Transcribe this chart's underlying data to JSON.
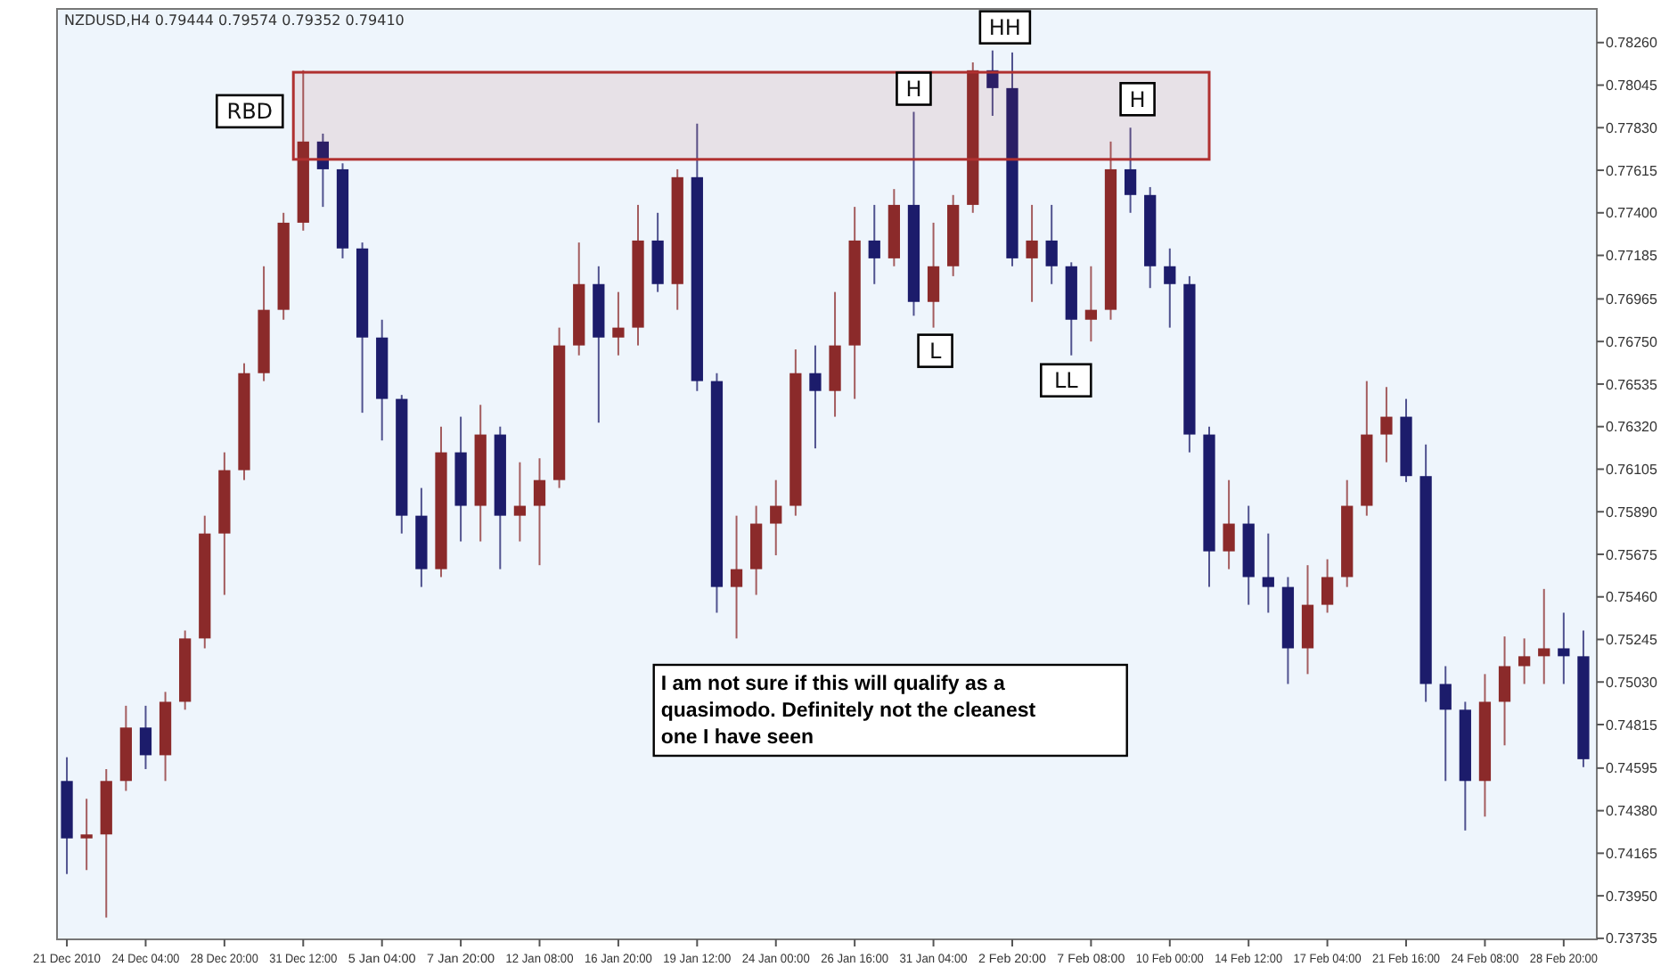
{
  "chart_data": {
    "type": "candlestick",
    "title": "NZDUSD,H4  0.79444 0.79574 0.79352 0.79410",
    "categories": [
      "21 Dec 2010",
      null,
      null,
      null,
      "24 Dec 04:00",
      null,
      null,
      null,
      "28 Dec 20:00",
      null,
      null,
      null,
      "31 Dec 12:00",
      null,
      null,
      null,
      "5 Jan 04:00",
      null,
      null,
      null,
      "7 Jan 20:00",
      null,
      null,
      null,
      "12 Jan 08:00",
      null,
      null,
      null,
      "16 Jan 20:00",
      null,
      null,
      null,
      "19 Jan 12:00",
      null,
      null,
      null,
      "24 Jan 00:00",
      null,
      null,
      null,
      "26 Jan 16:00",
      null,
      null,
      null,
      "31 Jan 04:00",
      null,
      null,
      null,
      "2 Feb 20:00",
      null,
      null,
      null,
      "7 Feb 08:00",
      null,
      null,
      null,
      "10 Feb 00:00",
      null,
      null,
      null,
      "14 Feb 12:00",
      null,
      null,
      null,
      "17 Feb 04:00",
      null,
      null,
      null,
      "21 Feb 16:00",
      null,
      null,
      null,
      "24 Feb 08:00",
      null,
      null,
      null,
      "28 Feb 20:00",
      null
    ],
    "ohlc": [
      [
        0.7453,
        0.7465,
        0.7406,
        0.7424
      ],
      [
        0.7424,
        0.7444,
        0.7408,
        0.7426
      ],
      [
        0.7426,
        0.7459,
        0.7384,
        0.7453
      ],
      [
        0.7453,
        0.7491,
        0.7448,
        0.748
      ],
      [
        0.748,
        0.7491,
        0.7459,
        0.7466
      ],
      [
        0.7466,
        0.7498,
        0.7453,
        0.7493
      ],
      [
        0.7493,
        0.7529,
        0.7489,
        0.7525
      ],
      [
        0.7525,
        0.7587,
        0.752,
        0.7578
      ],
      [
        0.7578,
        0.7619,
        0.7547,
        0.761
      ],
      [
        0.761,
        0.7664,
        0.7605,
        0.7659
      ],
      [
        0.7659,
        0.7713,
        0.7655,
        0.7691
      ],
      [
        0.7691,
        0.774,
        0.7686,
        0.7735
      ],
      [
        0.7735,
        0.7812,
        0.7731,
        0.7776
      ],
      [
        0.7776,
        0.778,
        0.7743,
        0.7762
      ],
      [
        0.7762,
        0.7765,
        0.7717,
        0.7722
      ],
      [
        0.7722,
        0.7725,
        0.7639,
        0.7677
      ],
      [
        0.7677,
        0.7686,
        0.7625,
        0.7646
      ],
      [
        0.7646,
        0.7648,
        0.7578,
        0.7587
      ],
      [
        0.7587,
        0.7601,
        0.7551,
        0.756
      ],
      [
        0.756,
        0.7632,
        0.7556,
        0.7619
      ],
      [
        0.7619,
        0.7637,
        0.7574,
        0.7592
      ],
      [
        0.7592,
        0.7643,
        0.7574,
        0.7628
      ],
      [
        0.7628,
        0.7632,
        0.756,
        0.7587
      ],
      [
        0.7587,
        0.7614,
        0.7574,
        0.7592
      ],
      [
        0.7592,
        0.7616,
        0.7562,
        0.7605
      ],
      [
        0.7605,
        0.7682,
        0.7601,
        0.7673
      ],
      [
        0.7673,
        0.7725,
        0.7668,
        0.7704
      ],
      [
        0.7704,
        0.7713,
        0.7634,
        0.7677
      ],
      [
        0.7677,
        0.77,
        0.7668,
        0.7682
      ],
      [
        0.7682,
        0.7744,
        0.7673,
        0.7726
      ],
      [
        0.7726,
        0.774,
        0.77,
        0.7704
      ],
      [
        0.7704,
        0.7762,
        0.7691,
        0.7758
      ],
      [
        0.7758,
        0.7785,
        0.765,
        0.7655
      ],
      [
        0.7655,
        0.7659,
        0.7538,
        0.7551
      ],
      [
        0.7551,
        0.7587,
        0.7525,
        0.756
      ],
      [
        0.756,
        0.7592,
        0.7547,
        0.7583
      ],
      [
        0.7583,
        0.7605,
        0.7567,
        0.7592
      ],
      [
        0.7592,
        0.7671,
        0.7587,
        0.7659
      ],
      [
        0.7659,
        0.7673,
        0.7621,
        0.765
      ],
      [
        0.765,
        0.77,
        0.7637,
        0.7673
      ],
      [
        0.7673,
        0.7743,
        0.7646,
        0.7726
      ],
      [
        0.7726,
        0.7744,
        0.7704,
        0.7717
      ],
      [
        0.7717,
        0.7752,
        0.7713,
        0.7744
      ],
      [
        0.7744,
        0.7791,
        0.7688,
        0.7695
      ],
      [
        0.7695,
        0.7735,
        0.7682,
        0.7713
      ],
      [
        0.7713,
        0.7749,
        0.7708,
        0.7744
      ],
      [
        0.7744,
        0.7816,
        0.774,
        0.7812
      ],
      [
        0.7812,
        0.7822,
        0.7789,
        0.7803
      ],
      [
        0.7803,
        0.7821,
        0.7713,
        0.7717
      ],
      [
        0.7717,
        0.7744,
        0.7695,
        0.7726
      ],
      [
        0.7726,
        0.7744,
        0.7704,
        0.7713
      ],
      [
        0.7713,
        0.7715,
        0.7668,
        0.7686
      ],
      [
        0.7686,
        0.7713,
        0.7675,
        0.7691
      ],
      [
        0.7691,
        0.7776,
        0.7686,
        0.7762
      ],
      [
        0.7762,
        0.7783,
        0.774,
        0.7749
      ],
      [
        0.7749,
        0.7753,
        0.7702,
        0.7713
      ],
      [
        0.7713,
        0.7722,
        0.7682,
        0.7704
      ],
      [
        0.7704,
        0.7708,
        0.7619,
        0.7628
      ],
      [
        0.7628,
        0.7632,
        0.7551,
        0.7569
      ],
      [
        0.7569,
        0.7605,
        0.756,
        0.7583
      ],
      [
        0.7583,
        0.7592,
        0.7542,
        0.7556
      ],
      [
        0.7556,
        0.7578,
        0.7538,
        0.7551
      ],
      [
        0.7551,
        0.7556,
        0.7502,
        0.752
      ],
      [
        0.752,
        0.7562,
        0.7507,
        0.7542
      ],
      [
        0.7542,
        0.7565,
        0.7538,
        0.7556
      ],
      [
        0.7556,
        0.7605,
        0.7551,
        0.7592
      ],
      [
        0.7592,
        0.7655,
        0.7587,
        0.7628
      ],
      [
        0.7628,
        0.7652,
        0.7614,
        0.7637
      ],
      [
        0.7637,
        0.7646,
        0.7604,
        0.7607
      ],
      [
        0.7607,
        0.7623,
        0.7493,
        0.7502
      ],
      [
        0.7502,
        0.7511,
        0.7453,
        0.7489
      ],
      [
        0.7489,
        0.7493,
        0.7428,
        0.7453
      ],
      [
        0.7453,
        0.7507,
        0.7435,
        0.7493
      ],
      [
        0.7493,
        0.7526,
        0.7471,
        0.7511
      ],
      [
        0.7511,
        0.7525,
        0.7502,
        0.7516
      ],
      [
        0.7516,
        0.755,
        0.7502,
        0.752
      ],
      [
        0.752,
        0.7538,
        0.7502,
        0.7516
      ],
      [
        0.7516,
        0.7529,
        0.746,
        0.7464
      ]
    ],
    "colors": [
      "#1c1c6b",
      "#8b2a2a",
      "#8b2a2a",
      "#8b2a2a",
      "#1c1c6b",
      "#8b2a2a",
      "#8b2a2a",
      "#8b2a2a",
      "#8b2a2a",
      "#8b2a2a",
      "#8b2a2a",
      "#8b2a2a",
      "#8b2a2a",
      "#1c1c6b",
      "#1c1c6b",
      "#1c1c6b",
      "#1c1c6b",
      "#1c1c6b",
      "#1c1c6b",
      "#8b2a2a",
      "#1c1c6b",
      "#8b2a2a",
      "#1c1c6b",
      "#8b2a2a",
      "#8b2a2a",
      "#8b2a2a",
      "#8b2a2a",
      "#1c1c6b",
      "#8b2a2a",
      "#8b2a2a",
      "#1c1c6b",
      "#8b2a2a",
      "#1c1c6b",
      "#1c1c6b",
      "#8b2a2a",
      "#8b2a2a",
      "#8b2a2a",
      "#8b2a2a",
      "#1c1c6b",
      "#8b2a2a",
      "#8b2a2a",
      "#1c1c6b",
      "#8b2a2a",
      "#1c1c6b",
      "#8b2a2a",
      "#8b2a2a",
      "#8b2a2a",
      "#1c1c6b",
      "#1c1c6b",
      "#8b2a2a",
      "#1c1c6b",
      "#1c1c6b",
      "#8b2a2a",
      "#8b2a2a",
      "#1c1c6b",
      "#1c1c6b",
      "#1c1c6b",
      "#1c1c6b",
      "#1c1c6b",
      "#8b2a2a",
      "#1c1c6b",
      "#1c1c6b",
      "#1c1c6b",
      "#8b2a2a",
      "#8b2a2a",
      "#8b2a2a",
      "#8b2a2a",
      "#8b2a2a",
      "#1c1c6b",
      "#1c1c6b",
      "#1c1c6b",
      "#1c1c6b",
      "#8b2a2a",
      "#8b2a2a",
      "#8b2a2a",
      "#8b2a2a",
      "#1c1c6b",
      "#1c1c6b"
    ],
    "ylim": [
      0.7373,
      0.7843
    ],
    "yticks": [
      {
        "value": 0.7826,
        "label": "0.78260"
      },
      {
        "value": 0.78045,
        "label": "0.78045"
      },
      {
        "value": 0.7783,
        "label": "0.77830"
      },
      {
        "value": 0.77615,
        "label": "0.77615"
      },
      {
        "value": 0.774,
        "label": "0.77400"
      },
      {
        "value": 0.77185,
        "label": "0.77185"
      },
      {
        "value": 0.76965,
        "label": "0.76965"
      },
      {
        "value": 0.7675,
        "label": "0.76750"
      },
      {
        "value": 0.76535,
        "label": "0.76535"
      },
      {
        "value": 0.7632,
        "label": "0.76320"
      },
      {
        "value": 0.76105,
        "label": "0.76105"
      },
      {
        "value": 0.7589,
        "label": "0.75890"
      },
      {
        "value": 0.75675,
        "label": "0.75675"
      },
      {
        "value": 0.7546,
        "label": "0.75460"
      },
      {
        "value": 0.75245,
        "label": "0.75245"
      },
      {
        "value": 0.7503,
        "label": "0.75030"
      },
      {
        "value": 0.74815,
        "label": "0.74815"
      },
      {
        "value": 0.74595,
        "label": "0.74595"
      },
      {
        "value": 0.7438,
        "label": "0.74380"
      },
      {
        "value": 0.74165,
        "label": "0.74165"
      },
      {
        "value": 0.7395,
        "label": "0.73950"
      },
      {
        "value": 0.73735,
        "label": "0.73735"
      }
    ],
    "bands": [
      {
        "axis": "y",
        "from": 0.7767,
        "to": 0.7811,
        "color": "#b03030"
      }
    ],
    "annotations": [
      "RBD",
      {
        "text": "H",
        "y": 0.7791
      },
      {
        "text": "HH",
        "y": 0.7822
      },
      {
        "text": "H",
        "y": 0.7783
      },
      {
        "text": "L",
        "y": 0.7682
      },
      {
        "text": "LL",
        "y": 0.7668
      },
      "I am not sure if this will qualify as a\nquasimodo. Definitely not the cleanest\none I have seen"
    ]
  }
}
